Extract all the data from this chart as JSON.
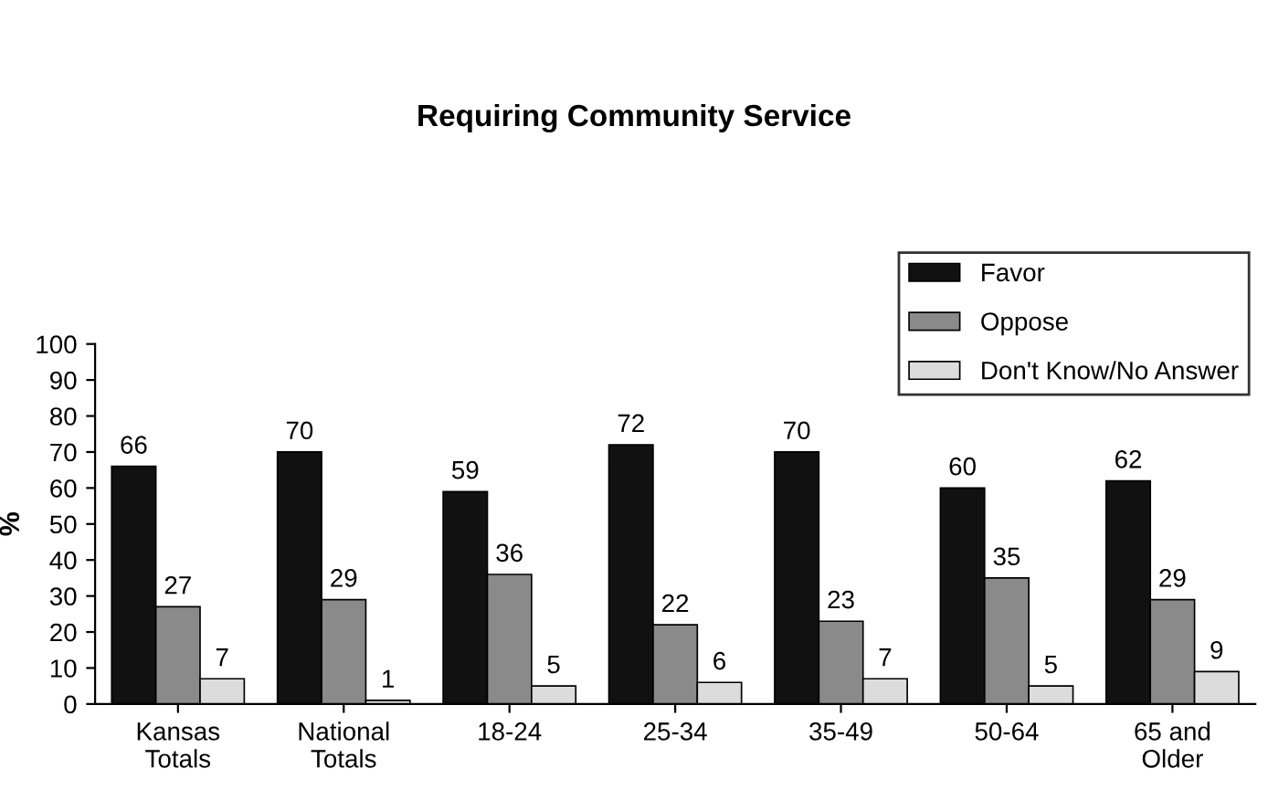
{
  "chart_data": {
    "type": "bar",
    "title": "Requiring Community Service",
    "ylabel": "%",
    "categories": [
      "Kansas\nTotals",
      "National\nTotals",
      "18-24",
      "25-34",
      "35-49",
      "50-64",
      "65 and\nOlder"
    ],
    "series": [
      {
        "name": "Favor",
        "color": "#111111",
        "values": [
          66,
          70,
          59,
          72,
          70,
          60,
          62
        ]
      },
      {
        "name": "Oppose",
        "color": "#8a8a8a",
        "values": [
          27,
          29,
          36,
          22,
          23,
          35,
          29
        ]
      },
      {
        "name": "Don't Know/No Answer",
        "color": "#dcdcdc",
        "values": [
          7,
          1,
          5,
          6,
          7,
          5,
          9
        ]
      }
    ],
    "ylim": [
      0,
      100
    ],
    "yticks": [
      0,
      10,
      20,
      30,
      40,
      50,
      60,
      70,
      80,
      90,
      100
    ],
    "data_labels": true,
    "legend": "top right",
    "grid": false
  }
}
